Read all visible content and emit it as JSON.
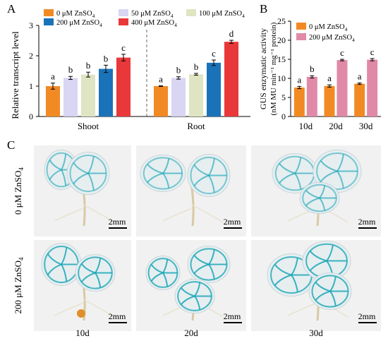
{
  "panels": {
    "a": "A",
    "b": "B",
    "c": "C"
  },
  "colors": {
    "c0": "#f28a23",
    "c50": "#d8d6f2",
    "c100": "#dfe5c2",
    "c200": "#1a73b8",
    "c400": "#e8383a",
    "treat0": "#f28a23",
    "treat200": "#e08aa8",
    "photo_bg": "#f1f1f1",
    "stain": "#1aa6b7"
  },
  "chart_data": [
    {
      "type": "bar",
      "panel": "A",
      "ylabel": "Relative transcript level",
      "ylim": [
        0,
        3
      ],
      "yticks": [
        "0",
        "1",
        "2",
        "3"
      ],
      "categories": [
        "Shoot",
        "Root"
      ],
      "series": [
        {
          "name": "0 μM ZnSO4",
          "values": [
            1.0,
            1.0
          ],
          "errors": [
            0.1,
            0.01
          ],
          "letters": [
            "a",
            "a"
          ],
          "color": "#f28a23"
        },
        {
          "name": "50 μM ZnSO4",
          "values": [
            1.27,
            1.27
          ],
          "errors": [
            0.05,
            0.04
          ],
          "letters": [
            "b",
            "b"
          ],
          "color": "#d8d6f2"
        },
        {
          "name": "100 μM ZnSO4",
          "values": [
            1.38,
            1.39
          ],
          "errors": [
            0.08,
            0.03
          ],
          "letters": [
            "b",
            "b"
          ],
          "color": "#dfe5c2"
        },
        {
          "name": "200 μM ZnSO4",
          "values": [
            1.57,
            1.77
          ],
          "errors": [
            0.12,
            0.09
          ],
          "letters": [
            "b",
            "c"
          ],
          "color": "#1a73b8"
        },
        {
          "name": "400 μM ZnSO4",
          "values": [
            1.94,
            2.46
          ],
          "errors": [
            0.11,
            0.05
          ],
          "letters": [
            "c",
            "d"
          ],
          "color": "#e8383a"
        }
      ]
    },
    {
      "type": "bar",
      "panel": "B",
      "ylabel": "GUS enzymatic activity",
      "ylabel2": "(nM MU min⁻¹ mg⁻¹ protein)",
      "ylim": [
        0,
        25
      ],
      "yticks": [
        "0",
        "5",
        "10",
        "15",
        "20",
        "25"
      ],
      "categories": [
        "10d",
        "20d",
        "30d"
      ],
      "series": [
        {
          "name": "0 μM ZnSO4",
          "values": [
            7.6,
            8.0,
            8.6
          ],
          "errors": [
            0.3,
            0.3,
            0.2
          ],
          "letters": [
            "a",
            "a",
            "a"
          ],
          "color": "#f28a23"
        },
        {
          "name": "200 μM ZnSO4",
          "values": [
            10.4,
            14.8,
            14.9
          ],
          "errors": [
            0.3,
            0.2,
            0.3
          ],
          "letters": [
            "b",
            "c",
            "c"
          ],
          "color": "#e08aa8"
        }
      ]
    }
  ],
  "panel_c": {
    "row_labels": [
      "0 μM ZnSO4",
      "200 μM ZnSO4"
    ],
    "col_labels": [
      "10d",
      "20d",
      "30d"
    ],
    "scale_label": "2mm"
  }
}
